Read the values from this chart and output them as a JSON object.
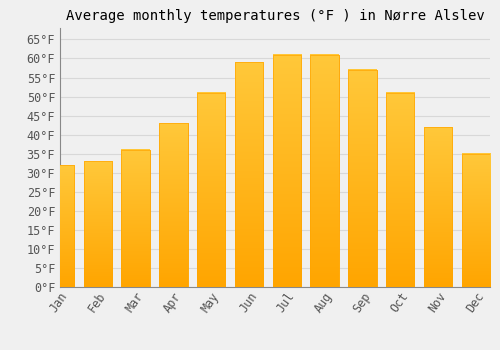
{
  "title": "Average monthly temperatures (°F ) in Nørre Alslev",
  "months": [
    "Jan",
    "Feb",
    "Mar",
    "Apr",
    "May",
    "Jun",
    "Jul",
    "Aug",
    "Sep",
    "Oct",
    "Nov",
    "Dec"
  ],
  "values": [
    32,
    33,
    36,
    43,
    51,
    59,
    61,
    61,
    57,
    51,
    42,
    35
  ],
  "bar_color_top": "#FFC83A",
  "bar_color_bottom": "#FFA500",
  "background_color": "#f0f0f0",
  "ytick_labels": [
    "0°F",
    "5°F",
    "10°F",
    "15°F",
    "20°F",
    "25°F",
    "30°F",
    "35°F",
    "40°F",
    "45°F",
    "50°F",
    "55°F",
    "60°F",
    "65°F"
  ],
  "ytick_values": [
    0,
    5,
    10,
    15,
    20,
    25,
    30,
    35,
    40,
    45,
    50,
    55,
    60,
    65
  ],
  "ylim": [
    0,
    68
  ],
  "grid_color": "#d8d8d8",
  "title_fontsize": 10,
  "tick_fontsize": 8.5
}
